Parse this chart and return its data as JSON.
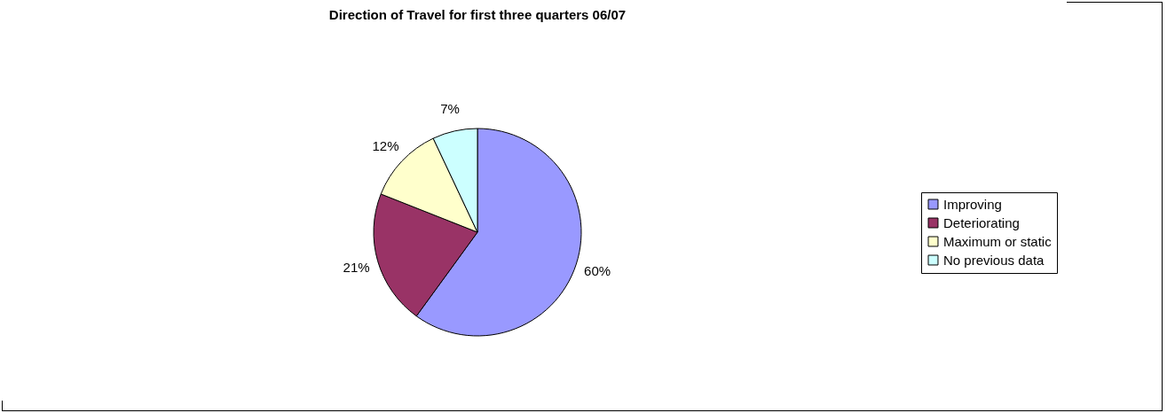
{
  "chart_data": {
    "type": "pie",
    "title": "Direction of Travel for first three quarters 06/07",
    "categories": [
      "Improving",
      "Deteriorating",
      "Maximum or static",
      "No previous data"
    ],
    "values": [
      60,
      21,
      12,
      7
    ],
    "colors": [
      "#9999ff",
      "#993366",
      "#ffffcc",
      "#ccffff"
    ],
    "value_labels": [
      "60%",
      "21%",
      "12%",
      "7%"
    ],
    "legend": "right"
  }
}
